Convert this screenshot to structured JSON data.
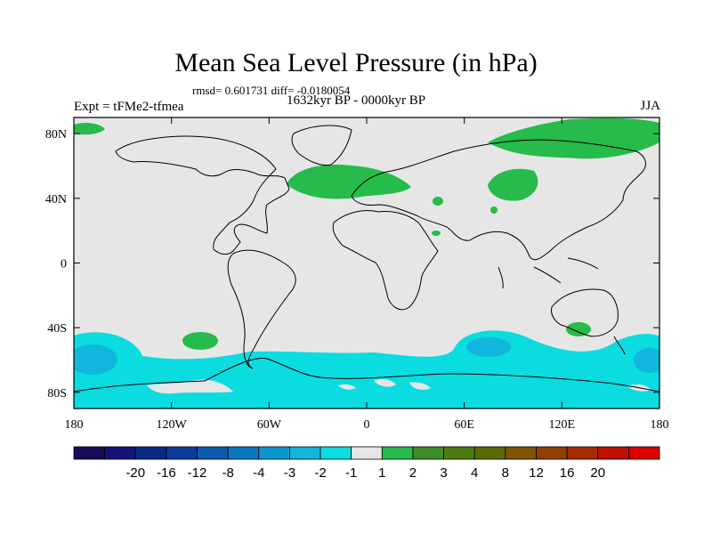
{
  "chart_data": {
    "type": "heatmap",
    "title": "Mean Sea Level Pressure (in hPa)",
    "stats": "rmsd= 0.601731 diff= -0.0180054",
    "experiment": "Expt = tFMe2-tfmea",
    "period": "1632kyr BP - 0000kyr BP",
    "season": "JJA",
    "x_range": [
      -180,
      180
    ],
    "y_range": [
      -90,
      90
    ],
    "x_ticks": [
      {
        "value": -180,
        "label": "180"
      },
      {
        "value": -120,
        "label": "120W"
      },
      {
        "value": -60,
        "label": "60W"
      },
      {
        "value": 0,
        "label": "0"
      },
      {
        "value": 60,
        "label": "60E"
      },
      {
        "value": 120,
        "label": "120E"
      },
      {
        "value": 180,
        "label": "180"
      }
    ],
    "y_ticks": [
      {
        "value": 80,
        "label": "80N"
      },
      {
        "value": 40,
        "label": "40N"
      },
      {
        "value": 0,
        "label": "0"
      },
      {
        "value": -40,
        "label": "40S"
      },
      {
        "value": -80,
        "label": "80S"
      }
    ],
    "colorbar": {
      "colors": [
        "#1a0a5a",
        "#15137a",
        "#0a2a8a",
        "#0a3a9a",
        "#0a5ab0",
        "#0a78c0",
        "#0a96d0",
        "#12b6dc",
        "#0adce0",
        "#e6e6e6",
        "#26bb4a",
        "#3e8c2a",
        "#4e7a10",
        "#5a6a00",
        "#805400",
        "#904000",
        "#a82a00",
        "#c01000",
        "#dd0000"
      ],
      "labels": [
        "-20",
        "-16",
        "-12",
        "-8",
        "-4",
        "-3",
        "-2",
        "-1",
        "1",
        "2",
        "3",
        "4",
        "8",
        "12",
        "16",
        "20"
      ]
    },
    "regions": [
      {
        "category": "-1 to -2",
        "color": "#0adce0",
        "note": "Southern Ocean band, 60S-90S"
      },
      {
        "category": "-2 to -3",
        "color": "#12b6dc",
        "note": "centers near 170W 60S, 80E 55S, 175E 60S"
      },
      {
        "category": "1 to 2",
        "color": "#26bb4a",
        "note": "North Atlantic, Arctic Siberia, Central Asia, 105W 45S, 140E 45S"
      }
    ]
  }
}
